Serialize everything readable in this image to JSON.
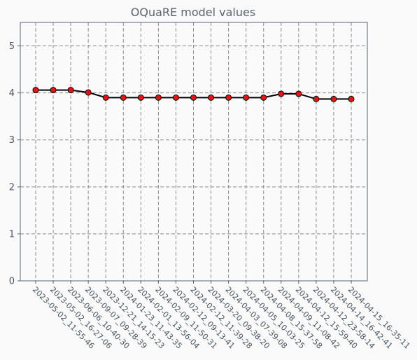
{
  "chart_data": {
    "type": "line",
    "title": "OQuaRE model values",
    "xlabel": "",
    "ylabel": "",
    "ylim": [
      0,
      5.5
    ],
    "yticks": [
      0,
      1,
      2,
      3,
      4,
      5
    ],
    "grid": true,
    "x": [
      "2023-05-02_11-55-46",
      "2023-05-02_16-27-06",
      "2023-06-06_10-40-30",
      "2023-09-07_09-28-39",
      "2023-12-21_14-15-23",
      "2024-01-23_11-43-35",
      "2024-02-01_13-56-04",
      "2024-02-09_11-50-31",
      "2024-02-12_09-13-41",
      "2024-02-12_11-39-28",
      "2024-03-20_09-38-20",
      "2024-04-03_07-39-08",
      "2024-04-05_10-03-25",
      "2024-04-08_15-37-58",
      "2024-04-09_11-08-42",
      "2024-04-12_15-59-40",
      "2024-04-12_23-58-14",
      "2024-04-14_16-42-41",
      "2024-04-15_16-35-11"
    ],
    "series": [
      {
        "values": [
          4.06,
          4.06,
          4.06,
          4.01,
          3.9,
          3.9,
          3.9,
          3.9,
          3.9,
          3.9,
          3.9,
          3.9,
          3.9,
          3.9,
          3.98,
          3.98,
          3.87,
          3.87,
          3.87
        ],
        "color": "#000000",
        "marker_color": "#ee1111"
      }
    ]
  }
}
